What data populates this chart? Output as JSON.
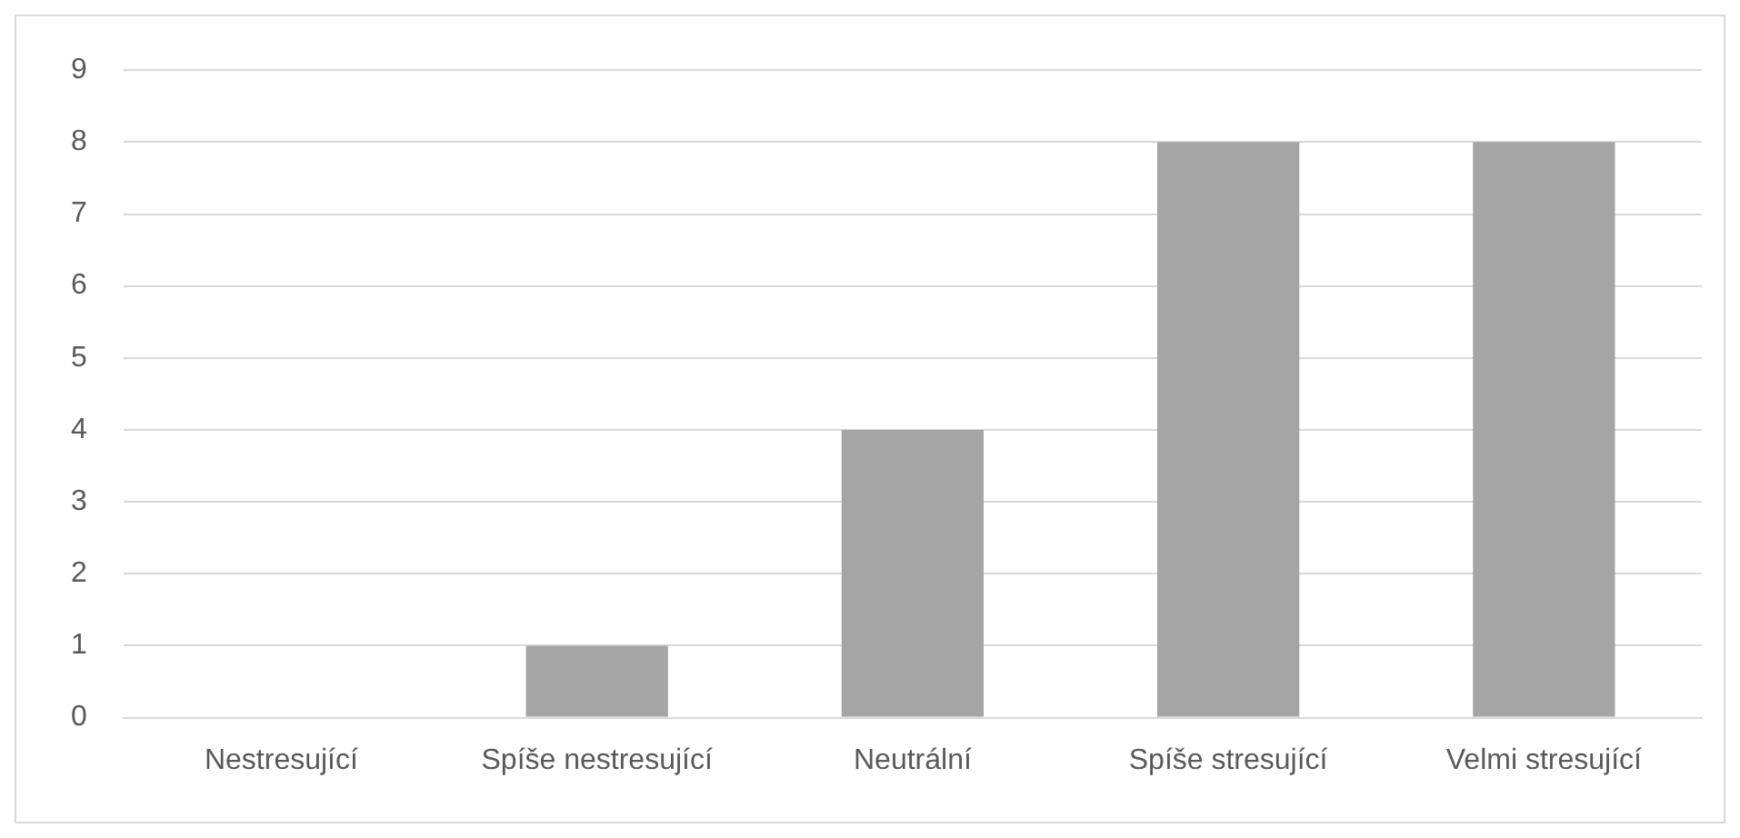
{
  "chart_data": {
    "type": "bar",
    "categories": [
      "Nestresující",
      "Spíše nestresující",
      "Neutrální",
      "Spíše stresující",
      "Velmi stresující"
    ],
    "values": [
      0,
      1,
      4,
      8,
      8
    ],
    "color": "#a5a5a5",
    "ylim": [
      0,
      9
    ],
    "yticks": [
      0,
      1,
      2,
      3,
      4,
      5,
      6,
      7,
      8,
      9
    ],
    "grid": "y",
    "legend": false
  }
}
